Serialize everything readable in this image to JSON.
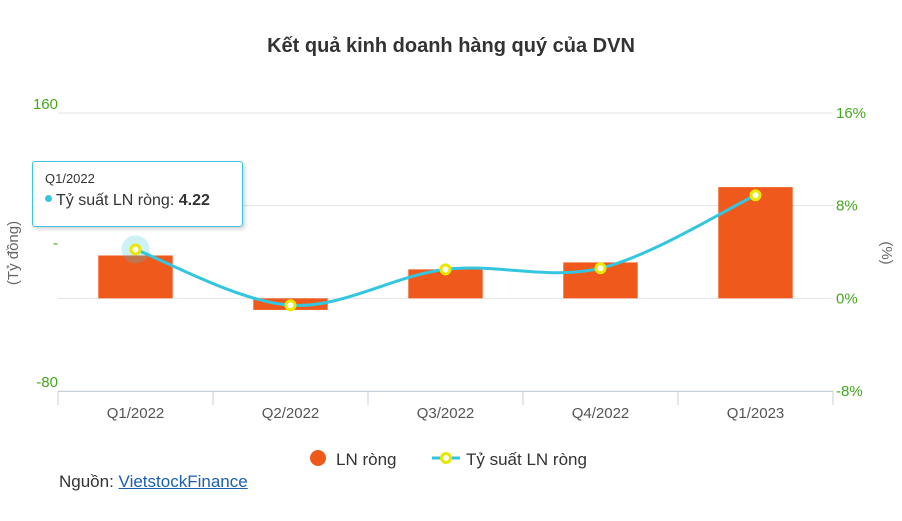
{
  "chart_data": {
    "type": "bar-line",
    "title": "Kết quả kinh doanh hàng quý của DVN",
    "categories": [
      "Q1/2022",
      "Q2/2022",
      "Q3/2022",
      "Q4/2022",
      "Q1/2023"
    ],
    "series": [
      {
        "name": "LN ròng",
        "type": "bar",
        "axis": "left",
        "color": "#ef5a1c",
        "values": [
          37,
          -10,
          25,
          31,
          96
        ]
      },
      {
        "name": "Tỷ suất LN ròng",
        "type": "line",
        "axis": "right",
        "color": "#34c6e0",
        "marker_color": "#e8e800",
        "values": [
          4.22,
          -0.6,
          2.5,
          2.6,
          8.9
        ]
      }
    ],
    "y_left": {
      "label": "(Tỷ đồng)",
      "range": [
        -80,
        160
      ],
      "ticks": [
        "-80",
        "-",
        "160"
      ],
      "color": "#44a81c"
    },
    "y_right": {
      "label": "(%)",
      "range": [
        -8,
        16
      ],
      "ticks": [
        "-8%",
        "0%",
        "8%",
        "16%"
      ],
      "color": "#44a81c"
    },
    "grid": true,
    "legend_position": "bottom"
  },
  "tooltip": {
    "title": "Q1/2022",
    "series_name": "Tỷ suất LN ròng",
    "separator": ": ",
    "value": "4.22",
    "category_index": 0
  },
  "source": {
    "prefix": "Nguồn: ",
    "link_text": "VietstockFinance"
  }
}
